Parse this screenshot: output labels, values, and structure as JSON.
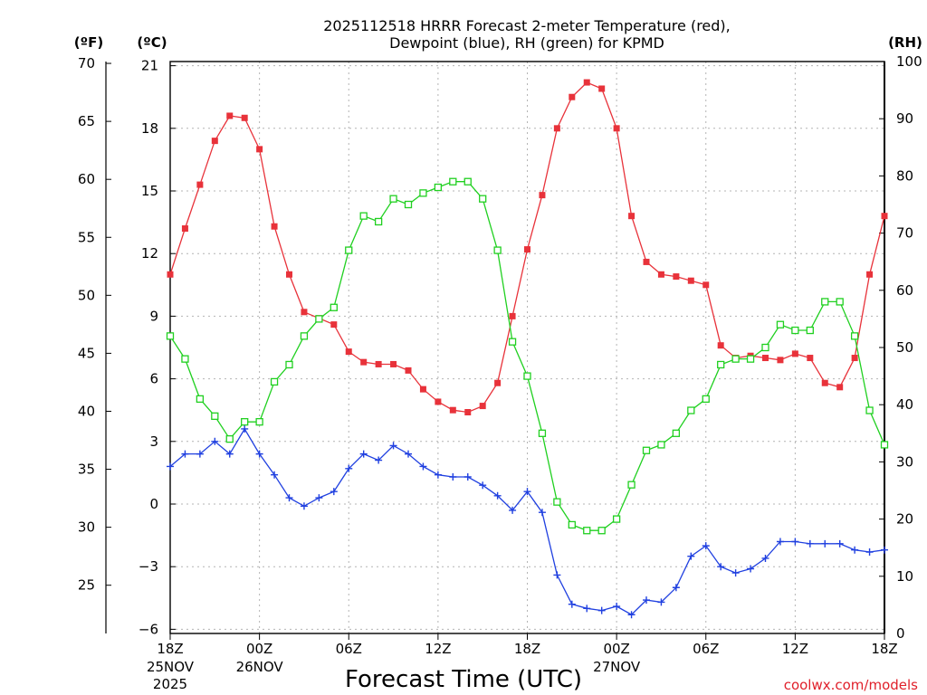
{
  "chart_data": {
    "type": "line",
    "title_line1": "2025112518 HRRR Forecast 2-meter Temperature (red),",
    "title_line2": "Dewpoint (blue), RH (green) for KPMD",
    "xlabel": "Forecast Time (UTC)",
    "credit": "coolwx.com/models",
    "units": {
      "fahrenheit": "(ºF)",
      "celsius": "(ºC)",
      "rh": "(RH)"
    },
    "forecast_hours": [
      0,
      1,
      2,
      3,
      4,
      5,
      6,
      7,
      8,
      9,
      10,
      11,
      12,
      13,
      14,
      15,
      16,
      17,
      18,
      19,
      20,
      21,
      22,
      23,
      24,
      25,
      26,
      27,
      28,
      29,
      30,
      31,
      32,
      33,
      34,
      35,
      36,
      37,
      38,
      39,
      40,
      41,
      42,
      43,
      44,
      45,
      46,
      47,
      48
    ],
    "x_range": [
      0,
      48
    ],
    "x_ticks": [
      {
        "hour": 0,
        "line1": "18Z",
        "line2": "25NOV",
        "line3": "2025"
      },
      {
        "hour": 6,
        "line1": "00Z",
        "line2": "26NOV",
        "line3": ""
      },
      {
        "hour": 12,
        "line1": "06Z",
        "line2": "",
        "line3": ""
      },
      {
        "hour": 18,
        "line1": "12Z",
        "line2": "",
        "line3": ""
      },
      {
        "hour": 24,
        "line1": "18Z",
        "line2": "",
        "line3": ""
      },
      {
        "hour": 30,
        "line1": "00Z",
        "line2": "27NOV",
        "line3": ""
      },
      {
        "hour": 36,
        "line1": "06Z",
        "line2": "",
        "line3": ""
      },
      {
        "hour": 42,
        "line1": "12Z",
        "line2": "",
        "line3": ""
      },
      {
        "hour": 48,
        "line1": "18Z",
        "line2": "",
        "line3": ""
      }
    ],
    "celsius_range": [
      -6.2,
      21.2
    ],
    "celsius_ticks": [
      "21",
      "18",
      "15",
      "12",
      "9",
      "6",
      "3",
      "0",
      "−3",
      "−6"
    ],
    "fahrenheit_ticks": [
      "70",
      "65",
      "60",
      "55",
      "50",
      "45",
      "40",
      "35",
      "30",
      "25"
    ],
    "rh_range": [
      0,
      100
    ],
    "rh_ticks": [
      "100",
      "90",
      "80",
      "70",
      "60",
      "50",
      "40",
      "30",
      "20",
      "10",
      "0"
    ],
    "series": [
      {
        "name": "Temperature",
        "color": "#e8323a",
        "marker": "filled-square",
        "values": [
          11.0,
          13.2,
          15.3,
          17.4,
          18.6,
          18.5,
          17.0,
          13.3,
          11.0,
          9.2,
          8.9,
          8.6,
          7.3,
          6.8,
          6.7,
          6.7,
          6.4,
          5.5,
          4.9,
          4.5,
          4.4,
          4.7,
          5.8,
          9.0,
          12.2,
          14.8,
          18.0,
          19.5,
          20.2,
          19.9,
          18.0,
          13.8,
          11.6,
          11.0,
          10.9,
          10.7,
          10.5,
          7.6,
          7.0,
          7.1,
          7.0,
          6.9,
          7.2,
          7.0,
          5.8,
          5.6,
          7.0,
          11.0,
          13.8
        ]
      },
      {
        "name": "Dewpoint",
        "color": "#2040e0",
        "marker": "plus",
        "values": [
          1.8,
          2.4,
          2.4,
          3.0,
          2.4,
          3.6,
          2.4,
          1.4,
          0.3,
          -0.1,
          0.3,
          0.6,
          1.7,
          2.4,
          2.1,
          2.8,
          2.4,
          1.8,
          1.4,
          1.3,
          1.3,
          0.9,
          0.4,
          -0.3,
          0.6,
          -0.4,
          -3.4,
          -4.8,
          -5.0,
          -5.1,
          -4.9,
          -5.3,
          -4.6,
          -4.7,
          -4.0,
          -2.5,
          -2.0,
          -3.0,
          -3.3,
          -3.1,
          -2.6,
          -1.8,
          -1.8,
          -1.9,
          -1.9,
          -1.9,
          -2.2,
          -2.3,
          -2.2
        ]
      },
      {
        "name": "RH",
        "color": "#20d020",
        "marker": "open-square",
        "values": [
          52,
          48,
          41,
          38,
          34,
          37,
          37,
          44,
          47,
          52,
          55,
          57,
          67,
          73,
          72,
          76,
          75,
          77,
          78,
          79,
          79,
          76,
          67,
          51,
          45,
          35,
          23,
          19,
          18,
          18,
          20,
          26,
          32,
          33,
          35,
          39,
          41,
          47,
          48,
          48,
          50,
          54,
          53,
          53,
          58,
          58,
          52,
          39,
          33
        ]
      }
    ]
  }
}
